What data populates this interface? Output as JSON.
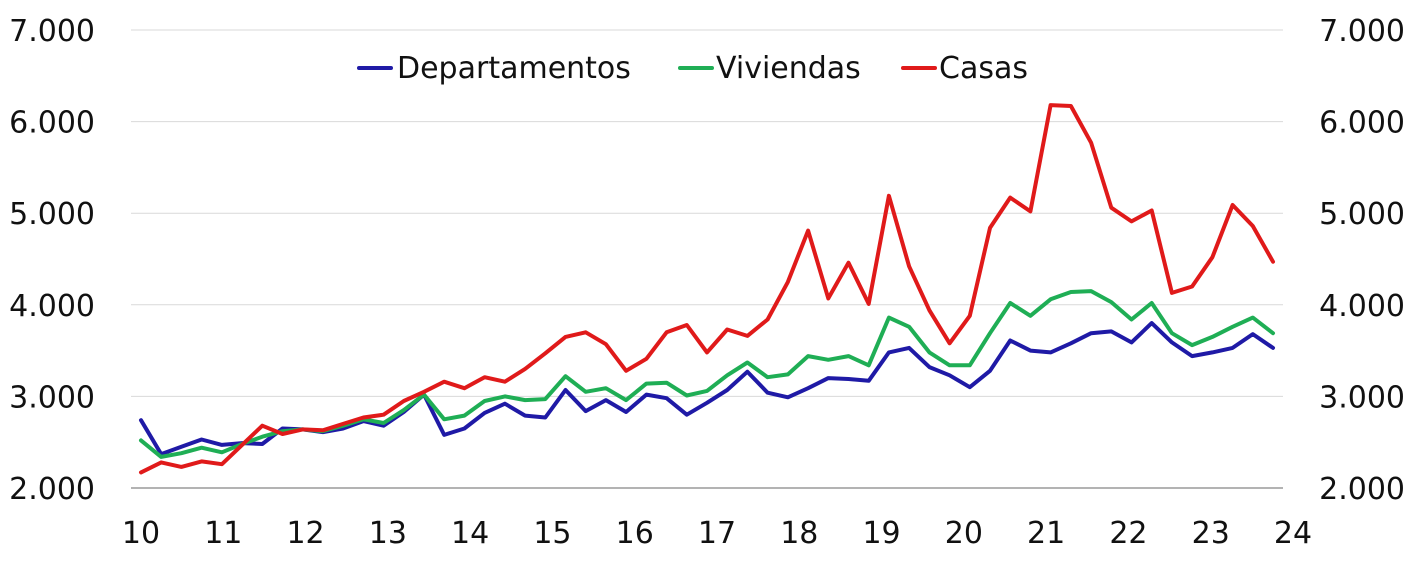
{
  "chart_data": {
    "type": "line",
    "title": "",
    "xlabel": "",
    "ylabel": "",
    "ylim": [
      2000,
      7000
    ],
    "y_ticks": [
      2000,
      3000,
      4000,
      5000,
      6000,
      7000
    ],
    "y_tick_labels": [
      "2.000",
      "3.000",
      "4.000",
      "5.000",
      "6.000",
      "7.000"
    ],
    "x_range": [
      10,
      24
    ],
    "x_tick_labels": [
      "10",
      "11",
      "12",
      "13",
      "14",
      "15",
      "16",
      "17",
      "18",
      "19",
      "20",
      "21",
      "22",
      "23",
      "24"
    ],
    "grid": true,
    "legend_position": "top-center",
    "series": [
      {
        "name": "Departamentos",
        "color": "#1f1aa6",
        "values": [
          2740,
          2370,
          2450,
          2530,
          2470,
          2490,
          2480,
          2650,
          2640,
          2610,
          2650,
          2730,
          2680,
          2830,
          3020,
          2580,
          2650,
          2820,
          2920,
          2790,
          2770,
          3070,
          2840,
          2960,
          2830,
          3020,
          2980,
          2800,
          2930,
          3070,
          3270,
          3040,
          2990,
          3090,
          3200,
          3190,
          3170,
          3480,
          3530,
          3320,
          3230,
          3100,
          3280,
          3610,
          3500,
          3480,
          3580,
          3690,
          3710,
          3590,
          3800,
          3590,
          3440,
          3480,
          3530,
          3680,
          3530
        ]
      },
      {
        "name": "Viviendas",
        "color": "#1fae55",
        "values": [
          2520,
          2340,
          2380,
          2440,
          2390,
          2480,
          2560,
          2620,
          2640,
          2620,
          2680,
          2750,
          2710,
          2850,
          3020,
          2750,
          2790,
          2950,
          3000,
          2960,
          2970,
          3220,
          3050,
          3090,
          2960,
          3140,
          3150,
          3010,
          3060,
          3230,
          3370,
          3210,
          3240,
          3440,
          3400,
          3440,
          3340,
          3860,
          3760,
          3480,
          3340,
          3340,
          3690,
          4020,
          3880,
          4060,
          4140,
          4150,
          4030,
          3840,
          4020,
          3690,
          3560,
          3650,
          3760,
          3860,
          3690
        ]
      },
      {
        "name": "Casas",
        "color": "#e01a1a",
        "values": [
          2170,
          2280,
          2230,
          2290,
          2260,
          2470,
          2680,
          2590,
          2640,
          2630,
          2700,
          2770,
          2800,
          2950,
          3050,
          3160,
          3090,
          3210,
          3160,
          3300,
          3470,
          3650,
          3700,
          3570,
          3280,
          3410,
          3700,
          3780,
          3480,
          3730,
          3660,
          3840,
          4250,
          4810,
          4070,
          4460,
          4010,
          5190,
          4420,
          3940,
          3580,
          3880,
          4840,
          5170,
          5020,
          6180,
          6170,
          5770,
          5060,
          4910,
          5030,
          4130,
          4200,
          4520,
          5090,
          4860,
          4470
        ]
      }
    ]
  }
}
